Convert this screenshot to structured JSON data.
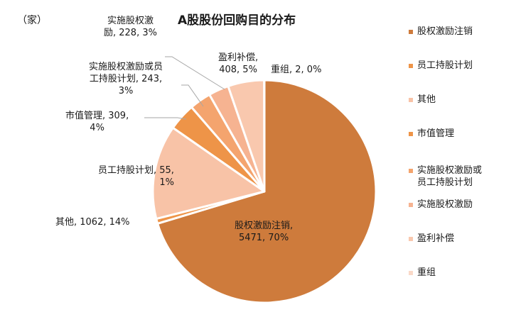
{
  "chart_data": {
    "type": "pie",
    "title": "A股股份回购目的分布",
    "unit": "（家）",
    "legend_position": "right",
    "slices": [
      {
        "name": "股权激励注销",
        "value": 5471,
        "percent": "70%",
        "color": "#CE7B3C",
        "label": "股权激励注销,\n5471, 70%"
      },
      {
        "name": "员工持股计划",
        "value": 55,
        "percent": "1%",
        "color": "#EE9448",
        "label": "员工持股计划, 55,\n1%"
      },
      {
        "name": "其他",
        "value": 1062,
        "percent": "14%",
        "color": "#F8C3A7",
        "label": "其他, 1062, 14%"
      },
      {
        "name": "市值管理",
        "value": 309,
        "percent": "4%",
        "color": "#EE9448",
        "label": "市值管理, 309,\n4%"
      },
      {
        "name": "实施股权激励或员工持股计划",
        "value": 243,
        "percent": "3%",
        "color": "#F4A46E",
        "label": "实施股权激励或员\n工持股计划, 243,\n3%"
      },
      {
        "name": "实施股权激励",
        "value": 228,
        "percent": "3%",
        "color": "#F6B391",
        "label": "实施股权激\n励, 228, 3%"
      },
      {
        "name": "盈利补偿",
        "value": 408,
        "percent": "5%",
        "color": "#F9C8AE",
        "label": "盈利补偿,\n408, 5%"
      },
      {
        "name": "重组",
        "value": 2,
        "percent": "0%",
        "color": "#FAD9C8",
        "label": "重组, 2, 0%"
      }
    ]
  },
  "header": {
    "unit": "（家）",
    "title": "A股股份回购目的分布"
  },
  "labels": {
    "equity_cancel_1": "股权激励注销,",
    "equity_cancel_2": "5471, 70%",
    "esop_1": "员工持股计划, 55,",
    "esop_2": "1%",
    "other": "其他, 1062, 14%",
    "market_cap_1": "市值管理, 309,",
    "market_cap_2": "4%",
    "incentive_or_esop_1": "实施股权激励或员",
    "incentive_or_esop_2": "工持股计划, 243,",
    "incentive_or_esop_3": "3%",
    "incentive_1": "实施股权激",
    "incentive_2": "励, 228, 3%",
    "profit_comp_1": "盈利补偿,",
    "profit_comp_2": "408, 5%",
    "restructure": "重组, 2, 0%"
  },
  "legend": [
    {
      "label": "股权激励注销",
      "color": "#CE7B3C"
    },
    {
      "label": "员工持股计划",
      "color": "#EE9448"
    },
    {
      "label": "其他",
      "color": "#F8C3A7"
    },
    {
      "label": "市值管理",
      "color": "#EE9448"
    },
    {
      "label": "实施股权激励或",
      "label2": "员工持股计划",
      "color": "#F4A46E"
    },
    {
      "label": "实施股权激励",
      "color": "#F6B391"
    },
    {
      "label": "盈利补偿",
      "color": "#F9C8AE"
    },
    {
      "label": "重组",
      "color": "#FAD9C8"
    }
  ]
}
